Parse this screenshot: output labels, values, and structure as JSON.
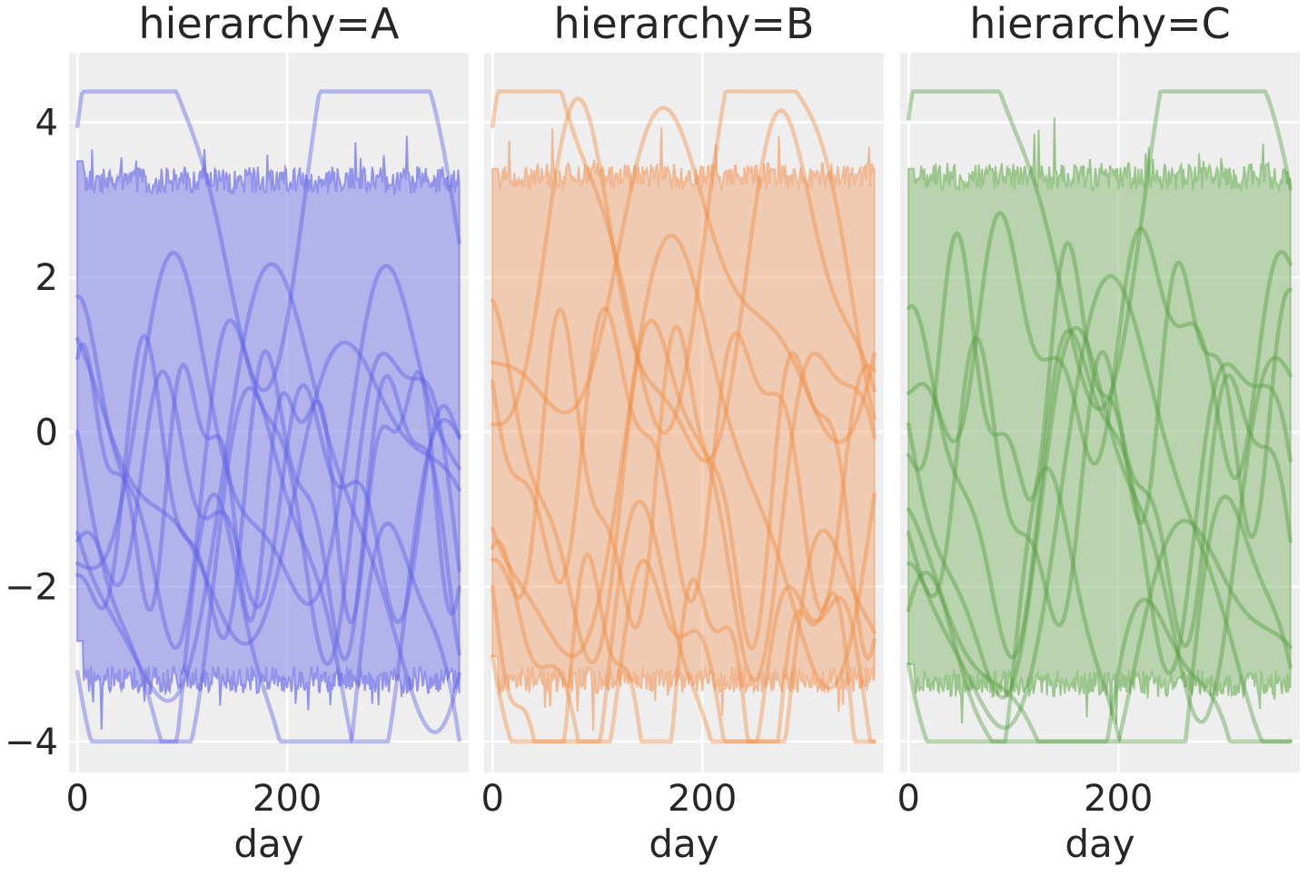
{
  "chart_data": {
    "type": "line",
    "layout": "facet-columns",
    "shared_y": true,
    "grid": true,
    "xlabel": "day",
    "ylabel": "",
    "xlim": [
      -8,
      373
    ],
    "ylim": [
      -4.4,
      4.9
    ],
    "x_ticks": [
      0,
      200
    ],
    "y_ticks": [
      4,
      2,
      0,
      -2,
      -4
    ],
    "x_tick_labels": [
      "0",
      "200"
    ],
    "y_tick_labels": [
      "4",
      "2",
      "0",
      "−2",
      "−4"
    ],
    "day_range": [
      0,
      364
    ],
    "panels": [
      {
        "title": "hierarchy=A",
        "color": "#5a5ae6",
        "band_color": "#8c8cea",
        "band": {
          "lower_mean": -3.2,
          "upper_mean": 3.25,
          "lower_start": -2.7,
          "upper_start": 3.5
        },
        "curves": [
          {
            "start": 3.95,
            "amp": 2.6,
            "period": 230,
            "phase": 0.1
          },
          {
            "start": 1.75,
            "amp": 1.9,
            "period": 150,
            "phase": 1.2
          },
          {
            "start": 0.0,
            "amp": 2.3,
            "period": 190,
            "phase": 2.0
          },
          {
            "start": -1.3,
            "amp": 2.7,
            "period": 260,
            "phase": 3.1
          },
          {
            "start": -1.85,
            "amp": 1.6,
            "period": 120,
            "phase": 4.3
          },
          {
            "start": 0.95,
            "amp": 1.3,
            "period": 100,
            "phase": 0.8
          },
          {
            "start": -1.7,
            "amp": 2.0,
            "period": 210,
            "phase": 5.0
          },
          {
            "start": -3.1,
            "amp": 2.4,
            "period": 170,
            "phase": 2.7
          },
          {
            "start": -1.4,
            "amp": 1.1,
            "period": 140,
            "phase": 3.9
          },
          {
            "start": 1.2,
            "amp": 1.7,
            "period": 280,
            "phase": 1.6
          }
        ]
      },
      {
        "title": "hierarchy=B",
        "color": "#f08a3c",
        "band_color": "#f0b48c",
        "band": {
          "lower_mean": -3.2,
          "upper_mean": 3.3,
          "lower_start": -2.9,
          "upper_start": 3.4
        },
        "curves": [
          {
            "start": 3.95,
            "amp": 2.5,
            "period": 220,
            "phase": 0.3
          },
          {
            "start": 1.7,
            "amp": 2.0,
            "period": 160,
            "phase": 1.4
          },
          {
            "start": 0.65,
            "amp": 1.5,
            "period": 130,
            "phase": 2.2
          },
          {
            "start": -1.25,
            "amp": 2.6,
            "period": 250,
            "phase": 3.3
          },
          {
            "start": -1.65,
            "amp": 1.7,
            "period": 115,
            "phase": 4.1
          },
          {
            "start": -2.9,
            "amp": 2.3,
            "period": 180,
            "phase": 2.6
          },
          {
            "start": 0.1,
            "amp": 2.1,
            "period": 200,
            "phase": 5.2
          },
          {
            "start": -1.5,
            "amp": 1.2,
            "period": 145,
            "phase": 0.9
          },
          {
            "start": 0.9,
            "amp": 1.8,
            "period": 270,
            "phase": 3.8
          },
          {
            "start": -2.0,
            "amp": 1.4,
            "period": 105,
            "phase": 1.9
          }
        ]
      },
      {
        "title": "hierarchy=C",
        "color": "#4f9a3a",
        "band_color": "#94c284",
        "band": {
          "lower_mean": -3.25,
          "upper_mean": 3.3,
          "lower_start": -3.0,
          "upper_start": 3.4
        },
        "curves": [
          {
            "start": 4.05,
            "amp": 2.6,
            "period": 240,
            "phase": 0.2
          },
          {
            "start": 1.6,
            "amp": 1.9,
            "period": 155,
            "phase": 1.1
          },
          {
            "start": 0.1,
            "amp": 2.2,
            "period": 195,
            "phase": 2.3
          },
          {
            "start": -1.3,
            "amp": 2.8,
            "period": 265,
            "phase": 3.0
          },
          {
            "start": -1.7,
            "amp": 1.5,
            "period": 125,
            "phase": 4.4
          },
          {
            "start": -3.0,
            "amp": 2.4,
            "period": 175,
            "phase": 2.8
          },
          {
            "start": -0.3,
            "amp": 1.4,
            "period": 110,
            "phase": 5.1
          },
          {
            "start": -2.3,
            "amp": 2.0,
            "period": 215,
            "phase": 0.7
          },
          {
            "start": 0.5,
            "amp": 1.2,
            "period": 140,
            "phase": 3.6
          },
          {
            "start": -1.0,
            "amp": 1.7,
            "period": 285,
            "phase": 1.5
          }
        ]
      }
    ]
  }
}
